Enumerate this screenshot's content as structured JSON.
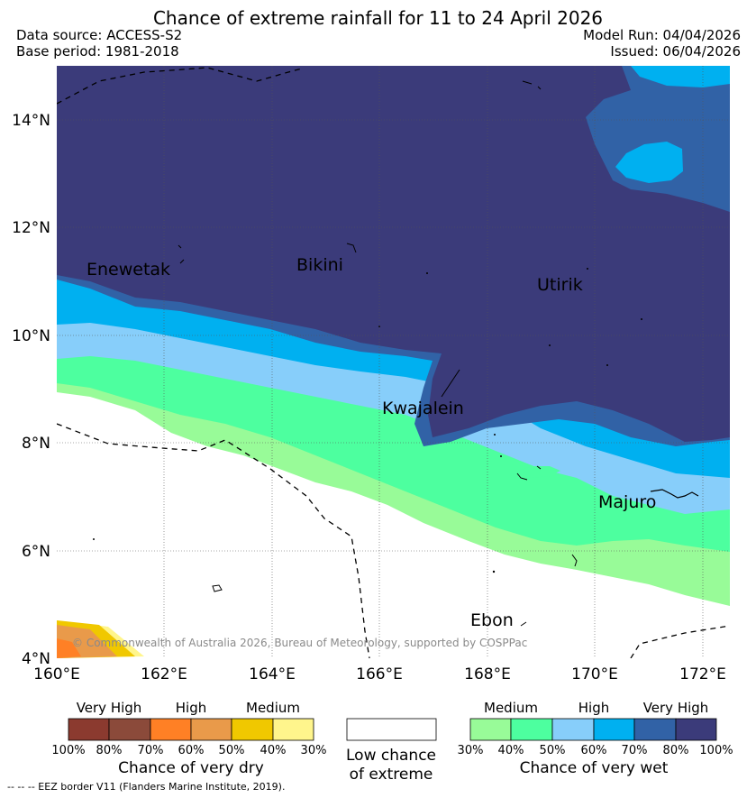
{
  "header": {
    "title": "Chance of extreme rainfall for 11 to 24 April 2026",
    "data_source": "Data source: ACCESS-S2",
    "base_period": "Base period: 1981-2018",
    "model_run": "Model Run: 04/04/2026",
    "issued": "Issued: 06/04/2026"
  },
  "map": {
    "lat_labels": [
      "14°N",
      "12°N",
      "10°N",
      "8°N",
      "6°N",
      "4°N"
    ],
    "lon_labels": [
      "160°E",
      "162°E",
      "164°E",
      "166°E",
      "168°E",
      "170°E",
      "172°E"
    ],
    "places": [
      "Enewetak",
      "Bikini",
      "Utirik",
      "Kwajalein",
      "Majuro",
      "Ebon"
    ],
    "copyright": "© Commonwealth of Australia 2026, Bureau of Meteorology, supported by COSPPac"
  },
  "legend": {
    "dry": {
      "levels": [
        "Very High",
        "High",
        "Medium"
      ],
      "ticks": [
        "100%",
        "80%",
        "70%",
        "60%",
        "50%",
        "40%",
        "30%"
      ],
      "colors": [
        "#8b3a2f",
        "#8b4a3a",
        "#ff8025",
        "#e99a4a",
        "#f0c800",
        "#fff58c"
      ],
      "title": "Chance of very dry"
    },
    "low": {
      "line1": "Low chance",
      "line2": "of extreme"
    },
    "wet": {
      "levels": [
        "Medium",
        "High",
        "Very High"
      ],
      "ticks": [
        "30%",
        "40%",
        "50%",
        "60%",
        "70%",
        "80%",
        "100%"
      ],
      "colors": [
        "#98fb98",
        "#4dff9f",
        "#87cefa",
        "#00b0f0",
        "#3162a6",
        "#3b3b7a"
      ],
      "title": "Chance of very wet"
    }
  },
  "footer": {
    "eez_note": "--  --  -- EEZ border V11 (Flanders Marine Institute, 2019)."
  }
}
